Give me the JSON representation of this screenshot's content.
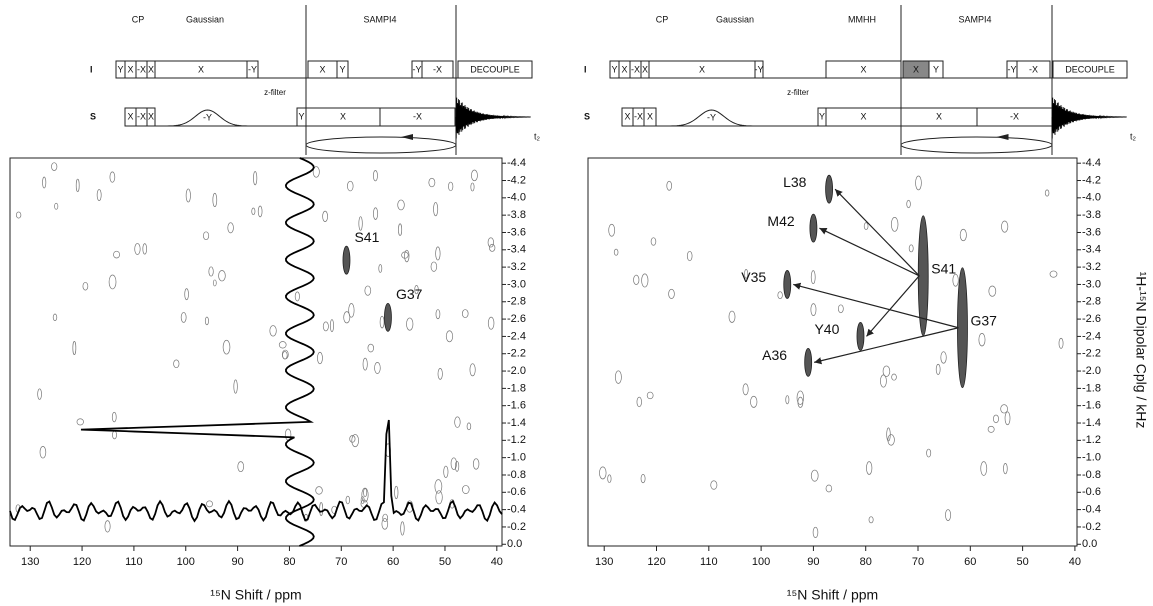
{
  "axes": {
    "xlabel": "¹⁵N Shift / ppm",
    "ylabel": "¹H-¹⁵N Dipolar Cplg / kHz",
    "xticks": [
      130,
      120,
      110,
      100,
      90,
      80,
      70,
      60,
      50,
      40
    ],
    "yticks": [
      {
        "value": 0,
        "label": "0.0"
      },
      -0.2,
      -0.4,
      -0.6,
      -0.8,
      {
        "value": -1,
        "label": "-1.0"
      },
      -1.2,
      -1.4,
      -1.6,
      -1.8,
      {
        "value": -2,
        "label": "-2.0"
      },
      -2.2,
      -2.4,
      -2.6,
      -2.8,
      {
        "value": -3,
        "label": "-3.0"
      },
      -3.2,
      -3.4,
      -3.6,
      -3.8,
      {
        "value": -4,
        "label": "-4.0"
      },
      -4.2,
      -4.4
    ],
    "ylim": [
      0.02,
      -4.46
    ]
  },
  "panels": [
    {
      "xlim": [
        133.9,
        39
      ],
      "sequence": {
        "sections": [
          "CP",
          "Gaussian",
          "SAMPI4"
        ],
        "channels": [
          "I",
          "S"
        ],
        "i_blocks": [
          "Y",
          "X",
          "-X",
          "X",
          "X",
          "-Y",
          "X",
          "Y",
          "-Y",
          "-X",
          "DECOUPLE"
        ],
        "s_blocks": [
          "X",
          "-X",
          "X",
          "-Y",
          "Y",
          "X",
          "-X"
        ],
        "filter": "z-filter",
        "t2": "t₂"
      },
      "peaks": [
        {
          "label": "S41",
          "x": 69,
          "y": -3.28
        },
        {
          "label": "G37",
          "x": 61,
          "y": -2.62
        }
      ]
    },
    {
      "xlim": [
        133.1,
        39.6
      ],
      "sequence": {
        "sections": [
          "CP",
          "Gaussian",
          "MMHH",
          "SAMPI4"
        ],
        "channels": [
          "I",
          "S"
        ],
        "i_blocks": [
          "Y",
          "X",
          "-X",
          "X",
          "X",
          "-Y",
          "X",
          "X",
          "Y",
          "-Y",
          "-X",
          "DECOUPLE"
        ],
        "s_blocks": [
          "X",
          "-X",
          "X",
          "-Y",
          "Y",
          "X",
          "X",
          "-X"
        ],
        "filter": "z-filter",
        "t2": "t₂"
      },
      "peaks": [
        {
          "label": "L38",
          "x": 87,
          "y": -4.1
        },
        {
          "label": "M42",
          "x": 90,
          "y": -3.65
        },
        {
          "label": "S41",
          "x": 69,
          "y": -3.1
        },
        {
          "label": "V35",
          "x": 95,
          "y": -3.0
        },
        {
          "label": "G37",
          "x": 61.5,
          "y": -2.5
        },
        {
          "label": "Y40",
          "x": 81,
          "y": -2.4
        },
        {
          "label": "A36",
          "x": 91,
          "y": -2.1
        }
      ]
    }
  ]
}
